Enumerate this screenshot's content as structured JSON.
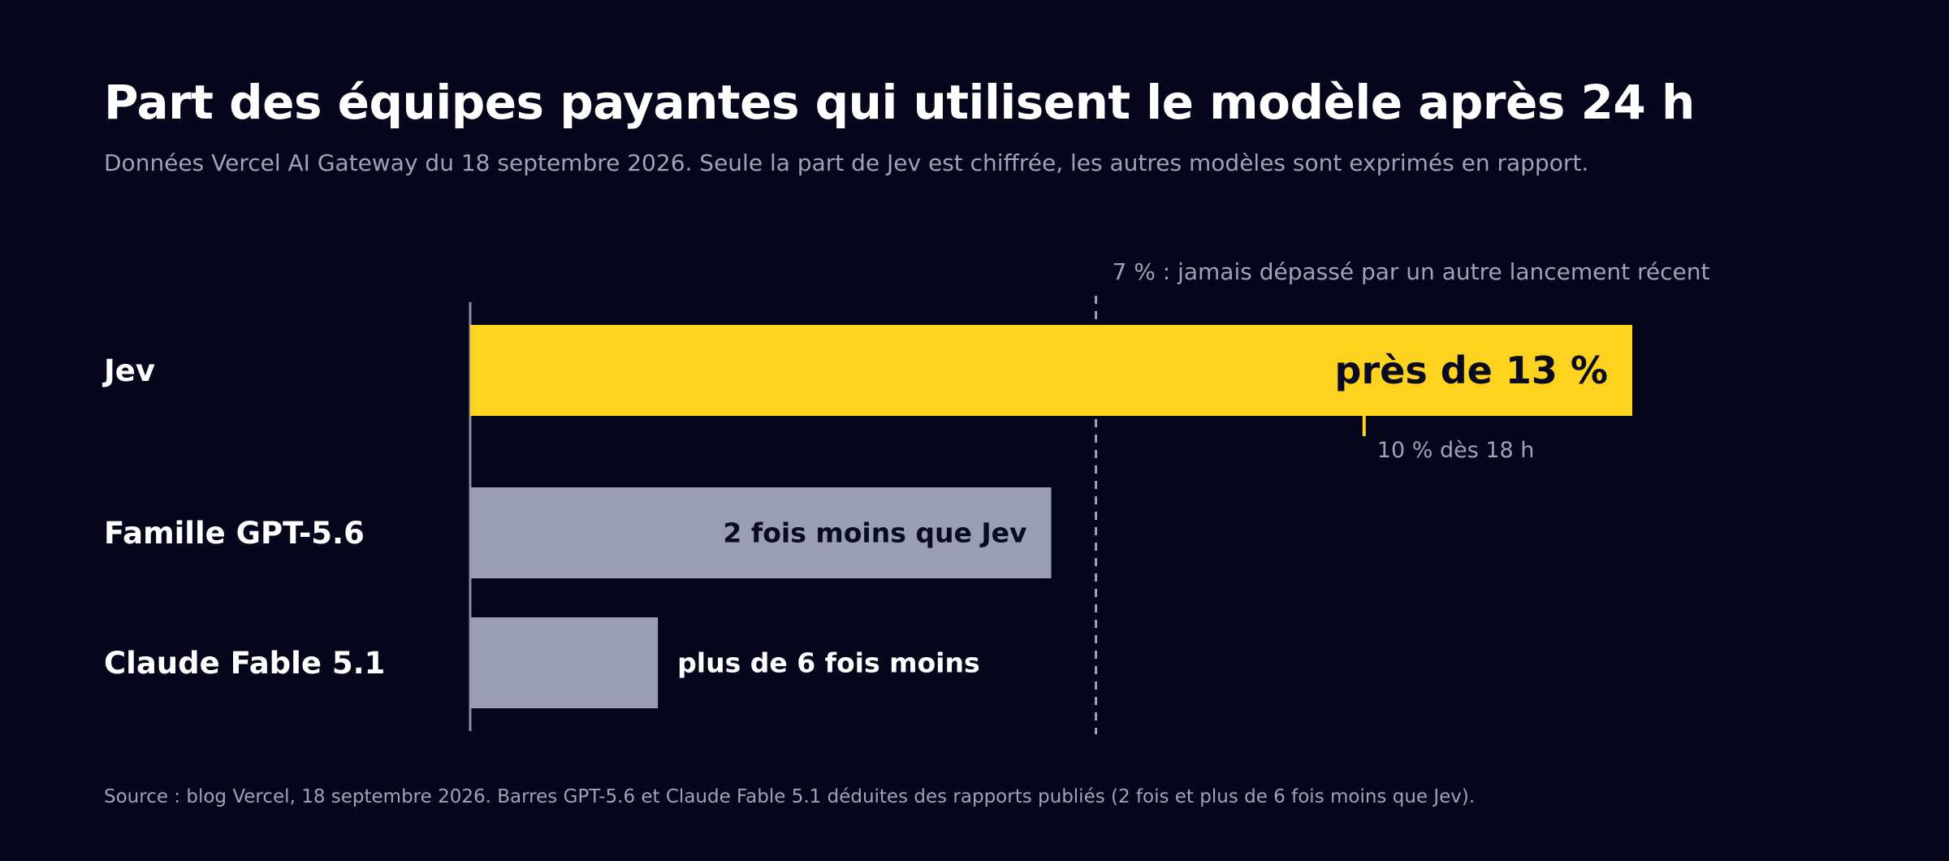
{
  "header": {
    "title": "Part des équipes payantes qui utilisent le modèle après 24 h",
    "subtitle": "Données Vercel AI Gateway du 18 septembre 2026. Seule la part de Jev est chiffrée, les autres modèles sont exprimés en rapport."
  },
  "footer": {
    "source": "Source : blog Vercel, 18 septembre 2026. Barres GPT-5.6 et Claude Fable 5.1 déduites des rapports publiés (2 fois et plus de 6 fois moins que Jev)."
  },
  "colors": {
    "background": "#05061c",
    "highlight": "#fdd31f",
    "muted_bar": "#999eb1",
    "text": "#ffffff",
    "muted_text": "#9ea3b7",
    "dark_text": "#0a0b1e"
  },
  "chart_data": {
    "type": "bar",
    "orientation": "horizontal",
    "categories": [
      "Jev",
      "Famille GPT-5.6",
      "Claude Fable 5.1"
    ],
    "values": [
      13,
      6.5,
      2.1
    ],
    "value_labels": [
      "près de 13 %",
      "2 fois moins que Jev",
      "plus de 6 fois moins"
    ],
    "highlight_category": "Jev",
    "xlim": [
      0,
      13
    ],
    "reference_line": {
      "value": 7,
      "label": "7 % : jamais dépassé par un autre lancement récent"
    },
    "marker": {
      "category": "Jev",
      "value": 10,
      "label": "10 % dès 18 h"
    }
  }
}
